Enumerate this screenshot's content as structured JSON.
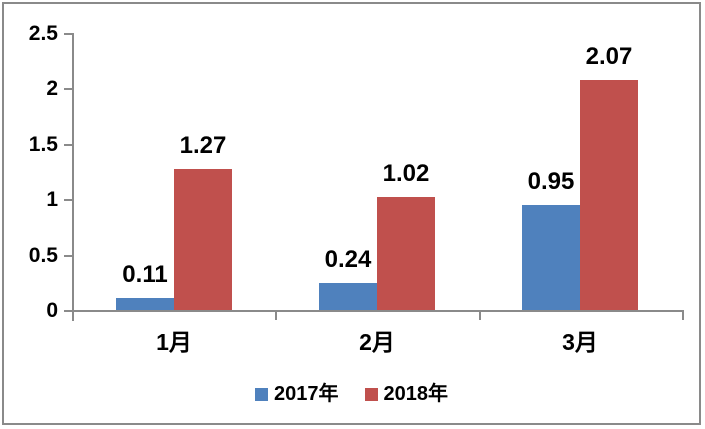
{
  "chart_data": {
    "type": "bar",
    "categories": [
      "1月",
      "2月",
      "3月"
    ],
    "series": [
      {
        "name": "2017年",
        "color": "#4F81BD",
        "values": [
          0.11,
          0.24,
          0.95
        ]
      },
      {
        "name": "2018年",
        "color": "#C0504D",
        "values": [
          1.27,
          1.02,
          2.07
        ]
      }
    ],
    "data_labels": [
      "0.11",
      "0.24",
      "0.95",
      "1.27",
      "1.02",
      "2.07"
    ],
    "title": "",
    "xlabel": "",
    "ylabel": "",
    "ylim": [
      0,
      2.5
    ],
    "y_ticks": [
      0,
      0.5,
      1,
      1.5,
      2,
      2.5
    ],
    "y_tick_labels": [
      "0",
      "0.5",
      "1",
      "1.5",
      "2",
      "2.5"
    ],
    "grid": "off",
    "legend_position": "bottom",
    "colors": {
      "axis": "#8a8a8a",
      "frame_border": "#8a8a8a",
      "text": "#000000",
      "background": "#ffffff"
    }
  }
}
